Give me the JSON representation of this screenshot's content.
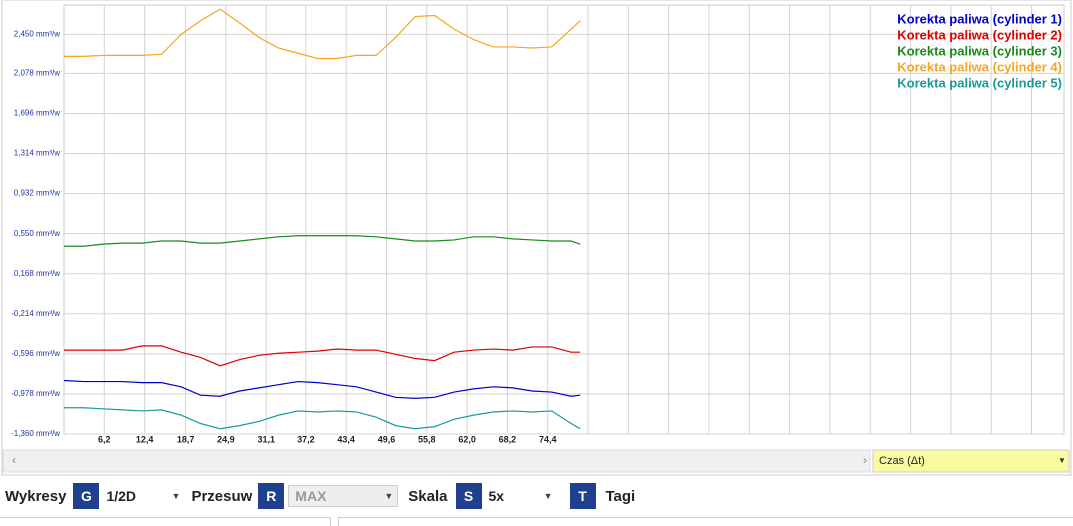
{
  "chart_data": {
    "type": "line",
    "xlim": [
      0,
      153.8
    ],
    "ylim": [
      -1.36,
      2.73
    ],
    "xticks": [
      {
        "value": 6.2,
        "label": "6,2"
      },
      {
        "value": 12.4,
        "label": "12,4"
      },
      {
        "value": 18.7,
        "label": "18,7"
      },
      {
        "value": 24.9,
        "label": "24,9"
      },
      {
        "value": 31.1,
        "label": "31,1"
      },
      {
        "value": 37.2,
        "label": "37,2"
      },
      {
        "value": 43.4,
        "label": "43,4"
      },
      {
        "value": 49.6,
        "label": "49,6"
      },
      {
        "value": 55.8,
        "label": "55,8"
      },
      {
        "value": 62.0,
        "label": "62,0"
      },
      {
        "value": 68.2,
        "label": "68,2"
      },
      {
        "value": 74.4,
        "label": "74,4"
      }
    ],
    "yticks": [
      {
        "value": -1.36,
        "label": "-1,360 mm³/w"
      },
      {
        "value": -0.978,
        "label": "-0,978 mm³/w"
      },
      {
        "value": -0.596,
        "label": "-0,596 mm³/w"
      },
      {
        "value": -0.214,
        "label": "-0,214 mm³/w"
      },
      {
        "value": 0.168,
        "label": "0,168 mm³/w"
      },
      {
        "value": 0.55,
        "label": "0,550 mm³/w"
      },
      {
        "value": 0.932,
        "label": "0,932 mm³/w"
      },
      {
        "value": 1.314,
        "label": "1,314 mm³/w"
      },
      {
        "value": 1.696,
        "label": "1,696 mm³/w"
      },
      {
        "value": 2.078,
        "label": "2,078 mm³/w"
      },
      {
        "value": 2.45,
        "label": "2,450 mm³/w"
      }
    ],
    "grid": true,
    "legend": "top-right",
    "x": [
      0,
      3,
      6,
      9,
      12,
      15,
      18,
      21,
      24,
      27,
      30,
      33,
      36,
      39,
      42,
      45,
      48,
      51,
      54,
      57,
      60,
      63,
      66,
      69,
      72,
      75,
      78,
      79.4
    ],
    "series": [
      {
        "name": "Korekta paliwa (cylinder 1)",
        "color": "#0000cc",
        "values": [
          -0.85,
          -0.86,
          -0.86,
          -0.86,
          -0.87,
          -0.87,
          -0.91,
          -0.99,
          -1.0,
          -0.95,
          -0.92,
          -0.89,
          -0.86,
          -0.87,
          -0.89,
          -0.91,
          -0.96,
          -1.01,
          -1.02,
          -1.01,
          -0.96,
          -0.93,
          -0.91,
          -0.92,
          -0.95,
          -0.96,
          -1.0,
          -0.99
        ]
      },
      {
        "name": "Korekta paliwa (cylinder 2)",
        "color": "#e00000",
        "values": [
          -0.56,
          -0.56,
          -0.56,
          -0.56,
          -0.52,
          -0.52,
          -0.58,
          -0.63,
          -0.71,
          -0.65,
          -0.61,
          -0.59,
          -0.58,
          -0.57,
          -0.55,
          -0.56,
          -0.56,
          -0.6,
          -0.64,
          -0.66,
          -0.58,
          -0.56,
          -0.55,
          -0.56,
          -0.53,
          -0.53,
          -0.58,
          -0.58
        ]
      },
      {
        "name": "Korekta paliwa (cylinder 3)",
        "color": "#1a8a1a",
        "values": [
          0.43,
          0.43,
          0.45,
          0.46,
          0.46,
          0.48,
          0.48,
          0.46,
          0.46,
          0.48,
          0.5,
          0.52,
          0.53,
          0.53,
          0.53,
          0.53,
          0.52,
          0.5,
          0.48,
          0.48,
          0.49,
          0.52,
          0.52,
          0.5,
          0.49,
          0.48,
          0.48,
          0.45
        ]
      },
      {
        "name": "Korekta paliwa (cylinder 4)",
        "color": "#f5a623",
        "values": [
          2.24,
          2.24,
          2.25,
          2.25,
          2.25,
          2.26,
          2.45,
          2.58,
          2.69,
          2.56,
          2.42,
          2.32,
          2.27,
          2.22,
          2.22,
          2.25,
          2.25,
          2.42,
          2.62,
          2.63,
          2.5,
          2.4,
          2.33,
          2.33,
          2.32,
          2.33,
          2.5,
          2.58
        ]
      },
      {
        "name": "Korekta paliwa (cylinder 5)",
        "color": "#1a9a9a",
        "values": [
          -1.11,
          -1.11,
          -1.12,
          -1.13,
          -1.14,
          -1.13,
          -1.18,
          -1.26,
          -1.31,
          -1.28,
          -1.24,
          -1.18,
          -1.14,
          -1.15,
          -1.14,
          -1.15,
          -1.2,
          -1.28,
          -1.31,
          -1.29,
          -1.22,
          -1.18,
          -1.15,
          -1.14,
          -1.15,
          -1.14,
          -1.26,
          -1.31
        ]
      }
    ]
  },
  "x_axis_selector": "Czas (Δt)",
  "toolbar": {
    "charts_label": "Wykresy",
    "charts_key": "G",
    "charts_value": "1/2D",
    "shift_label": "Przesuw",
    "shift_key": "R",
    "shift_value": "MAX",
    "scale_label": "Skala",
    "scale_key": "S",
    "scale_value": "5x",
    "tags_key": "T",
    "tags_label": "Tagi"
  }
}
